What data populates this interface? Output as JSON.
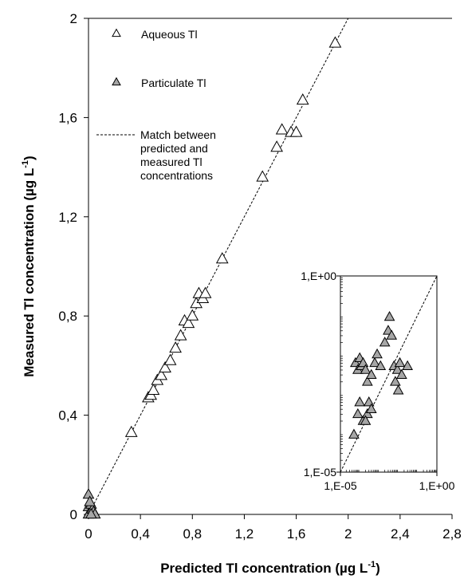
{
  "colors": {
    "axis": "#000000",
    "aqueous_fill": "#ffffff",
    "particulate_fill": "#a6a6a6",
    "marker_stroke": "#000000"
  },
  "chart_data": [
    {
      "type": "scatter",
      "title": "",
      "xlabel": "Predicted Tl concentration (µg L",
      "xlabel_sup": "-1",
      "xlabel_end": ")",
      "ylabel": "Measured Tl concentration (µg L",
      "ylabel_sup": "-1",
      "ylabel_end": ")",
      "xlim": [
        0,
        2.8
      ],
      "ylim": [
        0,
        2
      ],
      "xticks": [
        "0",
        "0,4",
        "0,8",
        "1,2",
        "1,6",
        "2",
        "2,4",
        "2,8"
      ],
      "xtick_values": [
        0,
        0.4,
        0.8,
        1.2,
        1.6,
        2,
        2.4,
        2.8
      ],
      "yticks": [
        "0",
        "0,4",
        "0,8",
        "1,2",
        "1,6",
        "2"
      ],
      "ytick_values": [
        0,
        0.4,
        0.8,
        1.2,
        1.6,
        2
      ],
      "legend_position": "top-left",
      "series": [
        {
          "name": "Aqueous Tl",
          "marker": "triangle-open",
          "points": [
            [
              0.33,
              0.33
            ],
            [
              0.46,
              0.47
            ],
            [
              0.48,
              0.48
            ],
            [
              0.5,
              0.5
            ],
            [
              0.53,
              0.54
            ],
            [
              0.56,
              0.56
            ],
            [
              0.59,
              0.59
            ],
            [
              0.63,
              0.62
            ],
            [
              0.67,
              0.67
            ],
            [
              0.71,
              0.72
            ],
            [
              0.74,
              0.78
            ],
            [
              0.77,
              0.77
            ],
            [
              0.8,
              0.8
            ],
            [
              0.83,
              0.85
            ],
            [
              0.85,
              0.89
            ],
            [
              0.88,
              0.87
            ],
            [
              0.9,
              0.89
            ],
            [
              1.03,
              1.03
            ],
            [
              1.34,
              1.36
            ],
            [
              1.45,
              1.48
            ],
            [
              1.49,
              1.55
            ],
            [
              1.56,
              1.54
            ],
            [
              1.6,
              1.54
            ],
            [
              1.65,
              1.67
            ],
            [
              1.9,
              1.9
            ]
          ]
        },
        {
          "name": "Particulate Tl",
          "marker": "triangle-filled",
          "points": [
            [
              0.0,
              0.08
            ],
            [
              0.0,
              0.03
            ],
            [
              0.01,
              0.01
            ],
            [
              0.02,
              0.04
            ],
            [
              0.0,
              0.0
            ],
            [
              0.03,
              0.02
            ],
            [
              0.04,
              0.01
            ],
            [
              0.05,
              0.0
            ],
            [
              0.01,
              0.05
            ],
            [
              0.02,
              0.0
            ]
          ]
        },
        {
          "name": "Match between predicted and measured Tl concentrations",
          "name_lines": [
            "Match between",
            "predicted and",
            "measured Tl",
            "concentrations"
          ],
          "marker": "dashed-line",
          "points": [
            [
              0,
              0
            ],
            [
              2.0,
              2.0
            ]
          ]
        }
      ]
    },
    {
      "type": "scatter",
      "title": "",
      "xlabel": "",
      "ylabel": "",
      "scale": "log",
      "xlim": [
        1e-05,
        1
      ],
      "ylim": [
        1e-05,
        1
      ],
      "xticks": [
        "1,E-05",
        "1,E+00"
      ],
      "xtick_values": [
        1e-05,
        1
      ],
      "yticks": [
        "1,E-05",
        "1,E+00"
      ],
      "ytick_values": [
        1e-05,
        1
      ],
      "series": [
        {
          "name": "Particulate Tl",
          "marker": "triangle-filled",
          "points": [
            [
              6e-05,
              0.006
            ],
            [
              8e-05,
              0.004
            ],
            [
              0.0001,
              0.008
            ],
            [
              0.00012,
              0.005
            ],
            [
              0.00015,
              0.006
            ],
            [
              0.0002,
              0.004
            ],
            [
              0.00025,
              0.002
            ],
            [
              8e-05,
              0.0003
            ],
            [
              0.0001,
              0.0006
            ],
            [
              0.00015,
              0.0002
            ],
            [
              0.00025,
              0.0003
            ],
            [
              0.0003,
              0.0006
            ],
            [
              0.0004,
              0.0004
            ],
            [
              0.0002,
              0.0002
            ],
            [
              5e-05,
              9e-05
            ],
            [
              0.0004,
              0.003
            ],
            [
              0.0006,
              0.006
            ],
            [
              0.0008,
              0.01
            ],
            [
              0.0012,
              0.005
            ],
            [
              0.002,
              0.02
            ],
            [
              0.003,
              0.04
            ],
            [
              0.0035,
              0.09
            ],
            [
              0.0045,
              0.03
            ],
            [
              0.006,
              0.005
            ],
            [
              0.009,
              0.004
            ],
            [
              0.012,
              0.006
            ],
            [
              0.015,
              0.003
            ],
            [
              0.03,
              0.005
            ],
            [
              0.007,
              0.002
            ],
            [
              0.01,
              0.0012
            ]
          ]
        },
        {
          "name": "Match between predicted and measured Tl concentrations",
          "marker": "dashed-line",
          "points": [
            [
              1e-05,
              1e-05
            ],
            [
              1,
              1
            ]
          ]
        }
      ]
    }
  ]
}
